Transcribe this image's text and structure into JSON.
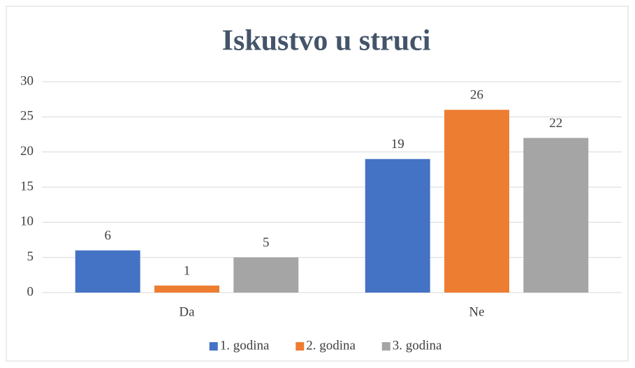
{
  "chart_data": {
    "type": "bar",
    "title": "Iskustvo u struci",
    "categories": [
      "Da",
      "Ne"
    ],
    "series": [
      {
        "name": "1. godina",
        "color": "#4472c4",
        "values": [
          6,
          19
        ]
      },
      {
        "name": "2. godina",
        "color": "#ed7d31",
        "values": [
          1,
          26
        ]
      },
      {
        "name": "3. godina",
        "color": "#a5a5a5",
        "values": [
          5,
          22
        ]
      }
    ],
    "ylim": [
      0,
      30
    ],
    "yticks": [
      0,
      5,
      10,
      15,
      20,
      25,
      30
    ],
    "grid": true,
    "legend": "bottom"
  }
}
